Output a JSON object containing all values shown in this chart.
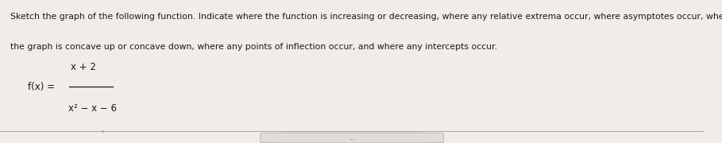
{
  "fig_width": 9.09,
  "fig_height": 1.8,
  "dpi": 100,
  "bg_color": "#f0ede8",
  "panel_bg": "#f5f2ee",
  "top_bar_color": "#4a9fa8",
  "left_edge_color": "#2a2a2a",
  "right_edge_color": "#5a3a1a",
  "bottom_line_color": "#999999",
  "text_color": "#1a1a1a",
  "nav_btn_bg": "#e0ddd8",
  "nav_btn_border": "#aaaaaa",
  "nav_btn_text": "...",
  "main_text_line1": "Sketch the graph of the following function. Indicate where the function is increasing or decreasing, where any relative extrema occur, where asymptotes occur, where",
  "main_text_line2": "the graph is concave up or concave down, where any points of inflection occur, and where any intercepts occur.",
  "formula_label": "f(x) =",
  "numerator": "x + 2",
  "denominator": "x² − x − 6",
  "text_fontsize": 7.8,
  "formula_fontsize": 8.5
}
